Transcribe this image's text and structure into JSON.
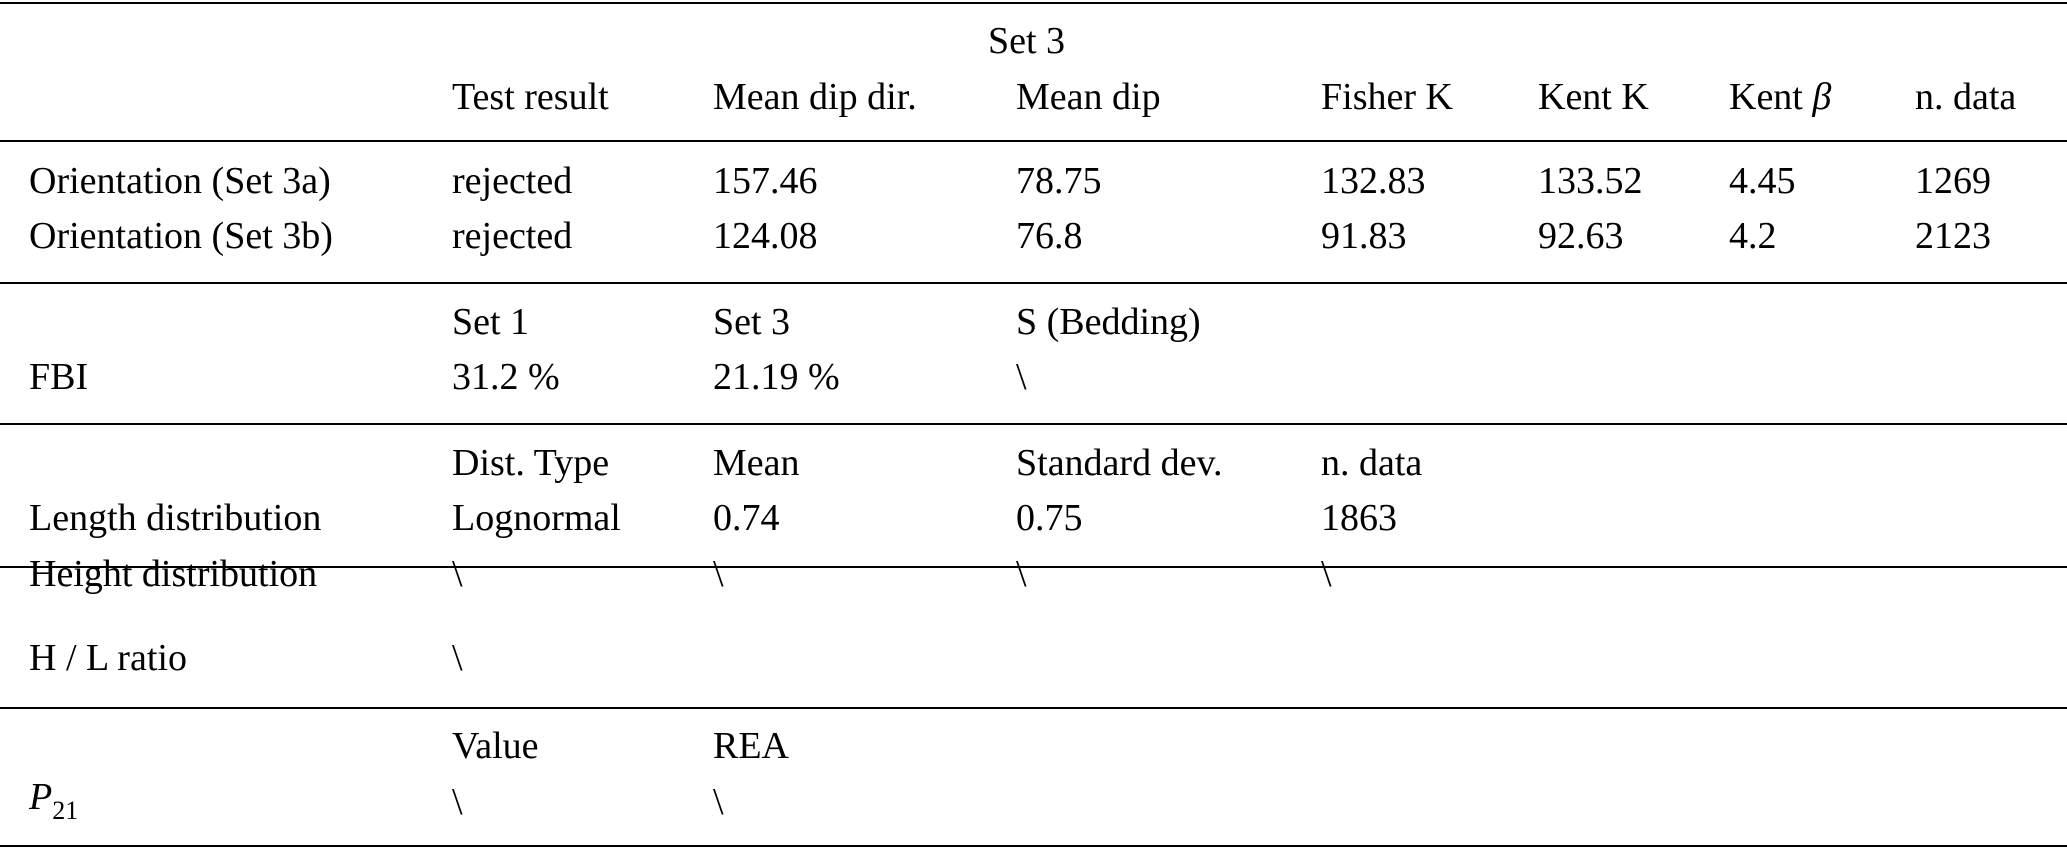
{
  "table": {
    "group_header": "Set 3",
    "orientation": {
      "columns": [
        "Test result",
        "Mean dip dir.",
        "Mean dip",
        "Fisher K",
        "Kent K",
        "Kent β",
        "n. data"
      ],
      "rows": [
        {
          "label": "Orientation (Set 3a)",
          "values": [
            "rejected",
            "157.46",
            "78.75",
            "132.83",
            "133.52",
            "4.45",
            "1269"
          ]
        },
        {
          "label": "Orientation (Set 3b)",
          "values": [
            "rejected",
            "124.08",
            "76.8",
            "91.83",
            "92.63",
            "4.2",
            "2123"
          ]
        }
      ]
    },
    "fbi": {
      "columns": [
        "Set 1",
        "Set 3",
        "S (Bedding)"
      ],
      "label": "FBI",
      "values": [
        "31.2 %",
        "21.19 %",
        "\\"
      ]
    },
    "distribution": {
      "columns": [
        "Dist. Type",
        "Mean",
        "Standard dev.",
        "n. data"
      ],
      "rows": [
        {
          "label": "Length distribution",
          "values": [
            "Lognormal",
            "0.74",
            "0.75",
            "1863"
          ]
        },
        {
          "label": "Height distribution",
          "values": [
            "\\",
            "\\",
            "\\",
            "\\"
          ]
        }
      ]
    },
    "hl_ratio": {
      "label": "H / L ratio",
      "value": "\\"
    },
    "p21": {
      "columns": [
        "Value",
        "REA"
      ],
      "label_main": "P",
      "label_sub": "21",
      "values": [
        "\\",
        "\\"
      ]
    }
  }
}
